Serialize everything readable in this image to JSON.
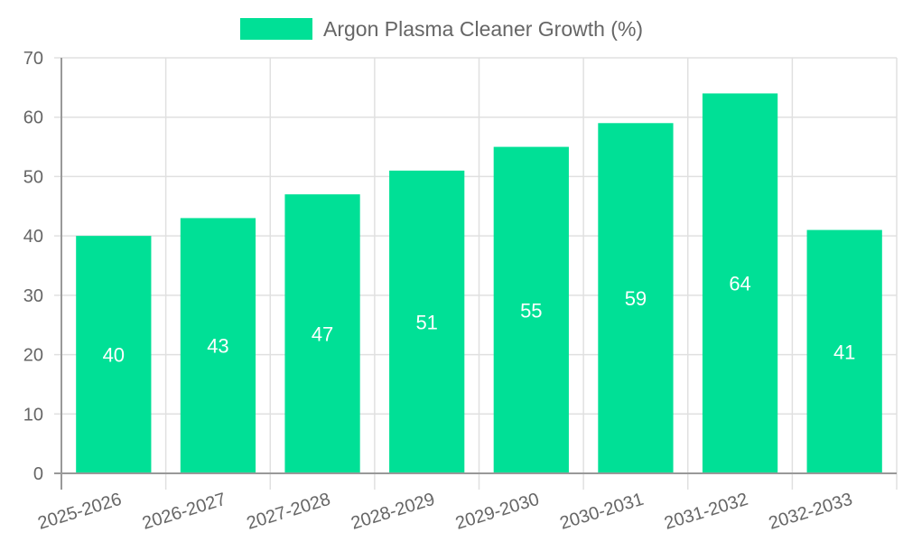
{
  "chart_data": {
    "type": "bar",
    "title": "",
    "categories": [
      "2025-2026",
      "2026-2027",
      "2027-2028",
      "2028-2029",
      "2029-2030",
      "2030-2031",
      "2031-2032",
      "2032-2033"
    ],
    "series": [
      {
        "name": "Argon Plasma Cleaner Growth (%)",
        "values": [
          40,
          43,
          47,
          51,
          55,
          59,
          64,
          41
        ],
        "color": "#00e096"
      }
    ],
    "xlabel": "",
    "ylabel": "",
    "ylim": [
      0,
      70
    ],
    "yticks": [
      0,
      10,
      20,
      30,
      40,
      50,
      60,
      70
    ],
    "grid": true,
    "legend_position": "top",
    "data_labels": true
  },
  "colors": {
    "bar": "#00e096",
    "grid": "#e0e0e0",
    "axis": "#999999",
    "text": "#666666",
    "bar_label": "#ffffff"
  }
}
